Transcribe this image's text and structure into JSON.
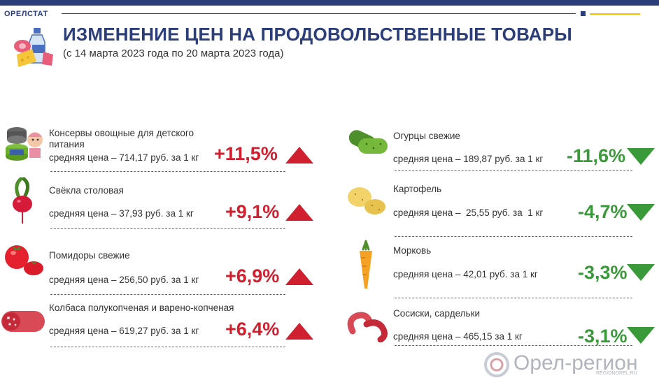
{
  "header": {
    "org": "ОРЕЛСТАТ",
    "title": "ИЗМЕНЕНИЕ ЦЕН НА ПРОДОВОЛЬСТВЕННЫЕ ТОВАРЫ",
    "subtitle": "(с 14 марта 2023 года по 20 марта 2023 года)"
  },
  "left_items": [
    {
      "name": "Консервы овощные для детского питания",
      "price": "средняя цена – 714,17 руб. за 1 кг",
      "change": "+11,5%",
      "direction": "up",
      "icon": "baby-food-cans-icon"
    },
    {
      "name": "Свёкла столовая",
      "price": "средняя цена – 37,93 руб. за 1 кг",
      "change": "+9,1%",
      "direction": "up",
      "icon": "beet-icon"
    },
    {
      "name": "Помидоры свежие",
      "price": "средняя цена – 256,50 руб. за 1 кг",
      "change": "+6,9%",
      "direction": "up",
      "icon": "tomato-icon"
    },
    {
      "name": "Колбаса полукопченая и варено-копченая",
      "price": "средняя цена – 619,27 руб. за 1 кг",
      "change": "+6,4%",
      "direction": "up",
      "icon": "sausage-icon"
    }
  ],
  "right_items": [
    {
      "name": "Огурцы свежие",
      "price": "средняя цена – 189,87 руб. за 1 кг",
      "change": "-11,6%",
      "direction": "down",
      "icon": "cucumber-icon"
    },
    {
      "name": "Картофель",
      "price": "средняя цена –  25,55 руб. за  1 кг",
      "change": "-4,7%",
      "direction": "down",
      "icon": "potato-icon"
    },
    {
      "name": "Морковь",
      "price": "средняя цена – 42,01 руб. за 1 кг",
      "change": "-3,3%",
      "direction": "down",
      "icon": "carrot-icon"
    },
    {
      "name": "Сосиски, сардельки",
      "price": "средняя цена – 465,15 за 1 кг",
      "change": "-3,1%",
      "direction": "down",
      "icon": "frankfurter-icon"
    }
  ],
  "colors": {
    "up": "#d01f2e",
    "down": "#3a9a3a",
    "brand": "#2c3e7a"
  },
  "watermark": {
    "text": "Орел-регион",
    "small": "REGIONOREL.RU"
  }
}
